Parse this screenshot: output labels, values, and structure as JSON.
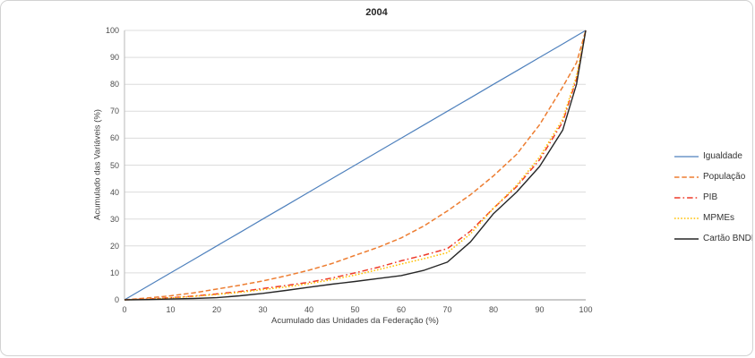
{
  "panel": {
    "title": "2004"
  },
  "chart_data": {
    "type": "line",
    "title": "2004",
    "xlabel": "Acumulado das Unidades da Federação (%)",
    "ylabel": "Acumulado das Variáveis (%)",
    "xlim": [
      0,
      100
    ],
    "ylim": [
      0,
      100
    ],
    "x_ticks": [
      0,
      10,
      20,
      30,
      40,
      50,
      60,
      70,
      80,
      90,
      100
    ],
    "y_ticks": [
      0,
      10,
      20,
      30,
      40,
      50,
      60,
      70,
      80,
      90,
      100
    ],
    "grid": "horizontal",
    "legend_position": "right",
    "x": [
      0,
      5,
      10,
      15,
      20,
      25,
      30,
      35,
      40,
      45,
      50,
      55,
      60,
      65,
      70,
      75,
      80,
      85,
      90,
      95,
      98,
      100
    ],
    "series": [
      {
        "name": "Igualdade",
        "color": "#4f81bd",
        "style": "solid",
        "values": [
          0,
          5,
          10,
          15,
          20,
          25,
          30,
          35,
          40,
          45,
          50,
          55,
          60,
          65,
          70,
          75,
          80,
          85,
          90,
          95,
          98,
          100
        ]
      },
      {
        "name": "População",
        "color": "#ed7d31",
        "style": "dashed",
        "values": [
          0,
          0.7,
          1.5,
          2.6,
          4,
          5.4,
          7,
          8.9,
          11,
          13.5,
          16.5,
          19.5,
          23,
          27.5,
          33,
          39,
          46,
          54,
          65,
          79,
          88,
          100
        ]
      },
      {
        "name": "PIB",
        "color": "#ee3b2a",
        "style": "dashdot",
        "values": [
          0,
          0.3,
          0.8,
          1.4,
          2.2,
          3.1,
          4.2,
          5.3,
          6.5,
          8.1,
          10,
          12.1,
          14.5,
          16.6,
          19,
          25.5,
          34,
          42,
          52,
          66,
          82,
          100
        ]
      },
      {
        "name": "MPMEs",
        "color": "#ffc000",
        "style": "dotted",
        "values": [
          0,
          0.2,
          0.7,
          1.3,
          2,
          2.8,
          3.8,
          4.8,
          6,
          7.5,
          9.2,
          11.2,
          13.3,
          15.3,
          17.5,
          24.5,
          34,
          42.5,
          53,
          67,
          83,
          100
        ]
      },
      {
        "name": "Cartão BNDES",
        "color": "#262626",
        "style": "solid",
        "values": [
          0,
          0.1,
          0.3,
          0.5,
          0.8,
          1.5,
          2.4,
          3.5,
          4.7,
          5.8,
          6.8,
          7.9,
          9,
          11,
          14,
          21.5,
          32,
          40,
          49.5,
          63,
          80,
          100
        ]
      }
    ],
    "gridline_color": "#dcdcdc",
    "axis_line_color": "#b9b9b9"
  }
}
